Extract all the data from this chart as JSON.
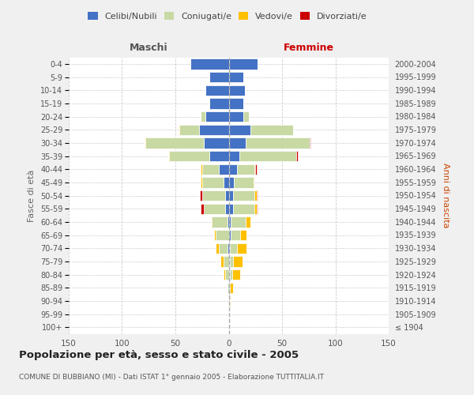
{
  "age_groups": [
    "100+",
    "95-99",
    "90-94",
    "85-89",
    "80-84",
    "75-79",
    "70-74",
    "65-69",
    "60-64",
    "55-59",
    "50-54",
    "45-49",
    "40-44",
    "35-39",
    "30-34",
    "25-29",
    "20-24",
    "15-19",
    "10-14",
    "5-9",
    "0-4"
  ],
  "birth_years": [
    "≤ 1904",
    "1905-1909",
    "1910-1914",
    "1915-1919",
    "1920-1924",
    "1925-1929",
    "1930-1934",
    "1935-1939",
    "1940-1944",
    "1945-1949",
    "1950-1954",
    "1955-1959",
    "1960-1964",
    "1965-1969",
    "1970-1974",
    "1975-1979",
    "1980-1984",
    "1985-1989",
    "1990-1994",
    "1995-1999",
    "2000-2004"
  ],
  "male_celibi": [
    0,
    0,
    0,
    0,
    0,
    0,
    1,
    0,
    1,
    3,
    3,
    5,
    9,
    18,
    23,
    28,
    22,
    18,
    22,
    18,
    36
  ],
  "male_coniugati": [
    0,
    0,
    0,
    1,
    3,
    5,
    8,
    12,
    15,
    20,
    22,
    20,
    16,
    38,
    55,
    18,
    4,
    0,
    0,
    0,
    0
  ],
  "male_vedovi": [
    0,
    0,
    0,
    0,
    2,
    3,
    3,
    2,
    1,
    0,
    0,
    1,
    1,
    1,
    1,
    1,
    0,
    0,
    0,
    0,
    0
  ],
  "male_divorziati": [
    0,
    0,
    0,
    0,
    0,
    0,
    0,
    0,
    0,
    3,
    2,
    0,
    0,
    0,
    0,
    0,
    0,
    0,
    0,
    0,
    0
  ],
  "female_celibi": [
    0,
    0,
    1,
    1,
    1,
    1,
    1,
    2,
    2,
    4,
    4,
    5,
    8,
    10,
    16,
    20,
    14,
    14,
    15,
    14,
    27
  ],
  "female_coniugati": [
    0,
    0,
    0,
    0,
    2,
    3,
    7,
    9,
    14,
    20,
    20,
    18,
    16,
    53,
    60,
    40,
    5,
    0,
    0,
    0,
    0
  ],
  "female_vedovi": [
    0,
    0,
    1,
    3,
    8,
    9,
    9,
    6,
    4,
    2,
    2,
    1,
    1,
    0,
    0,
    0,
    0,
    0,
    0,
    0,
    0
  ],
  "female_divorziati": [
    0,
    0,
    0,
    0,
    0,
    0,
    0,
    0,
    0,
    1,
    1,
    0,
    1,
    2,
    1,
    0,
    0,
    0,
    0,
    0,
    0
  ],
  "color_celibi": "#4472C4",
  "color_coniugati": "#C8D9A4",
  "color_vedovi": "#FFC000",
  "color_divorziati": "#CC0000",
  "title": "Popolazione per età, sesso e stato civile - 2005",
  "subtitle": "COMUNE DI BUBBIANO (MI) - Dati ISTAT 1° gennaio 2005 - Elaborazione TUTTITALIA.IT",
  "xlabel_left": "Maschi",
  "xlabel_right": "Femmine",
  "ylabel_left": "Fasce di età",
  "ylabel_right": "Anni di nascita",
  "xlim": 150,
  "bg_color": "#f0f0f0",
  "plot_bg": "#ffffff",
  "grid_color": "#cccccc"
}
